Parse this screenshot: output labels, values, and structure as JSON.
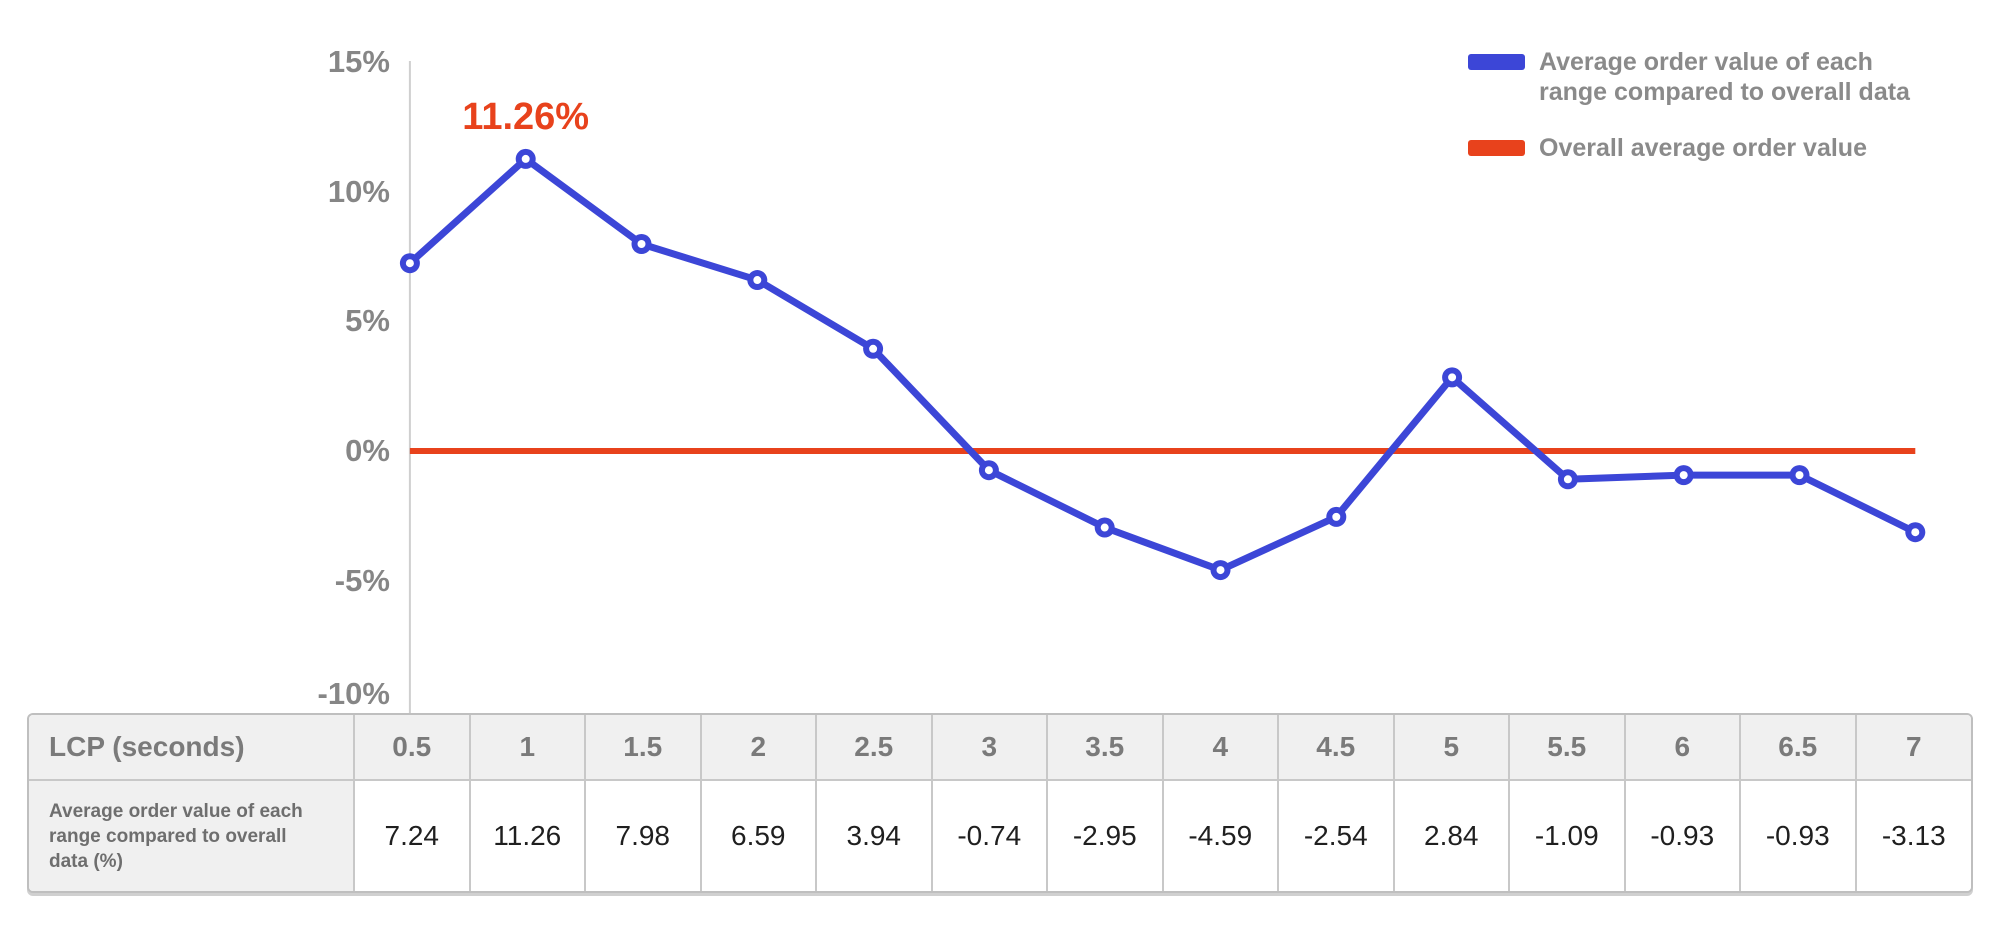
{
  "chart_data": {
    "type": "line",
    "x": [
      0.5,
      1,
      1.5,
      2,
      2.5,
      3,
      3.5,
      4,
      4.5,
      5,
      5.5,
      6,
      6.5,
      7
    ],
    "xlabel": "LCP (seconds)",
    "ylim": [
      -10,
      15
    ],
    "grid": false,
    "legend_position": "top-right",
    "y_axis": {
      "ticks": [
        {
          "label": "15%",
          "value": 15
        },
        {
          "label": "10%",
          "value": 10
        },
        {
          "label": "5%",
          "value": 5
        },
        {
          "label": "0%",
          "value": 0
        },
        {
          "label": "-5%",
          "value": -5
        },
        {
          "label": "-10%",
          "value": -10
        }
      ]
    },
    "series": [
      {
        "name": "Average order value of each range compared to overall data",
        "type": "line",
        "color": "#3c46d7",
        "values": [
          7.24,
          11.26,
          7.98,
          6.59,
          3.94,
          -0.74,
          -2.95,
          -4.59,
          -2.54,
          2.84,
          -1.09,
          -0.93,
          -0.93,
          -3.13
        ]
      },
      {
        "name": "Overall average order value",
        "type": "hline",
        "color": "#e8421c",
        "value": 0
      }
    ],
    "annotation": {
      "text": "11.26%",
      "x": 1,
      "y": 11.26,
      "color": "#e8421c"
    }
  },
  "legend": {
    "items": [
      {
        "label": "Average order value of each\nrange compared to overall data",
        "color": "#3c46d7"
      },
      {
        "label": "Overall average order value",
        "color": "#e8421c"
      }
    ]
  },
  "table": {
    "header_label": "LCP (seconds)",
    "row_label": "Average order value of each range compared to overall data (%)",
    "columns": [
      "0.5",
      "1",
      "1.5",
      "2",
      "2.5",
      "3",
      "3.5",
      "4",
      "4.5",
      "5",
      "5.5",
      "6",
      "6.5",
      "7"
    ],
    "values": [
      "7.24",
      "11.26",
      "7.98",
      "6.59",
      "3.94",
      "-0.74",
      "-2.95",
      "-4.59",
      "-2.54",
      "2.84",
      "-1.09",
      "-0.93",
      "-0.93",
      "-3.13"
    ]
  },
  "colors": {
    "series_blue": "#3c46d7",
    "series_red": "#e8421c",
    "axis_gray": "#cfcfcf",
    "tick_text": "#868686",
    "table_header_bg": "#f0f0f0",
    "table_border": "#c8c8c8",
    "value_text": "#1f1f1f"
  }
}
